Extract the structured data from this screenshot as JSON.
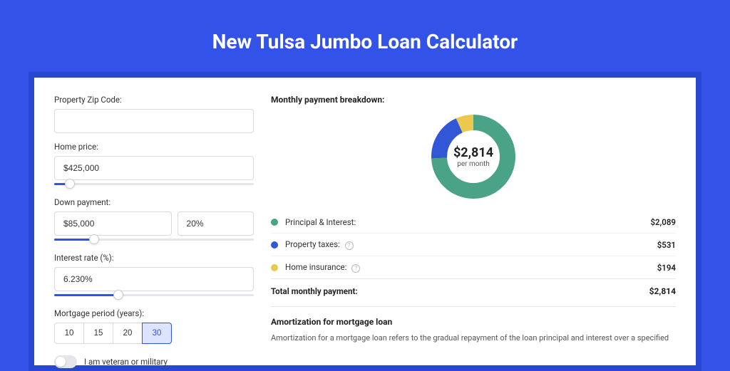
{
  "page": {
    "title": "New Tulsa Jumbo Loan Calculator"
  },
  "form": {
    "zip": {
      "label": "Property Zip Code:",
      "value": ""
    },
    "home_price": {
      "label": "Home price:",
      "value": "$425,000",
      "slider_fill_pct": 8,
      "slider_thumb_pct": 8
    },
    "down_payment": {
      "label": "Down payment:",
      "value": "$85,000",
      "pct": "20%",
      "slider_fill_pct": 20,
      "slider_thumb_pct": 20
    },
    "interest_rate": {
      "label": "Interest rate (%):",
      "value": "6.230%",
      "slider_fill_pct": 32,
      "slider_thumb_pct": 32
    },
    "mortgage_period": {
      "label": "Mortgage period (years):",
      "options": [
        "10",
        "15",
        "20",
        "30"
      ],
      "active": "30"
    },
    "veteran": {
      "label": "I am veteran or military",
      "on": false
    }
  },
  "breakdown": {
    "title": "Monthly payment breakdown:",
    "donut": {
      "amount": "$2,814",
      "sub": "per month",
      "size": 122,
      "radius": 48,
      "stroke": 22,
      "bg": "#ffffff",
      "slices": [
        {
          "color": "#4aa387",
          "pct": 74.2
        },
        {
          "color": "#3157d7",
          "pct": 18.9
        },
        {
          "color": "#eac94e",
          "pct": 6.9
        }
      ]
    },
    "legend": [
      {
        "dot": "#4aa387",
        "label": "Principal & Interest:",
        "info": false,
        "value": "$2,089"
      },
      {
        "dot": "#3157d7",
        "label": "Property taxes:",
        "info": true,
        "value": "$531"
      },
      {
        "dot": "#eac94e",
        "label": "Home insurance:",
        "info": true,
        "value": "$194"
      }
    ],
    "total": {
      "label": "Total monthly payment:",
      "value": "$2,814"
    }
  },
  "amortization": {
    "title": "Amortization for mortgage loan",
    "text": "Amortization for a mortgage loan refers to the gradual repayment of the loan principal and interest over a specified"
  }
}
